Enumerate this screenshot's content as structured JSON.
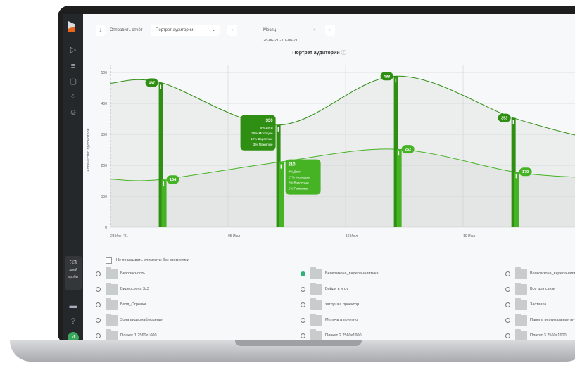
{
  "toolbar": {
    "send_report": "Отправить отчёт",
    "report_select": "Портрет аудитории",
    "period": "Месяц",
    "date_range": "28-06-21 - 01-08-21",
    "prev_icon": "chevron-left-icon",
    "next_icon": "chevron-right-icon"
  },
  "sidebar": {
    "trial_days": "33",
    "trial_label_1": "дней",
    "trial_label_2": "пробы",
    "avatar": "И",
    "icons": [
      "play-icon",
      "list-icon",
      "file-icon",
      "loader-icon",
      "user-icon",
      "monitor-icon",
      "help-icon"
    ]
  },
  "chart_data": {
    "type": "line",
    "title": "Портрет аудитории",
    "ylabel": "Количество просмотров",
    "xlabel": "",
    "ylim": [
      0,
      500
    ],
    "yticks": [
      0,
      100,
      200,
      300,
      400,
      500
    ],
    "xticks": [
      "28 Июн '21",
      "05 Июл",
      "12 Июл",
      "19 Июл"
    ],
    "grid": true,
    "colors": {
      "upper": "#2f8f12",
      "lower": "#45b324"
    },
    "series": [
      {
        "x": [
          "2021-06-28",
          "2021-07-01",
          "2021-07-08",
          "2021-07-15",
          "2021-07-22",
          "2021-07-26"
        ],
        "values": [
          465,
          467,
          330,
          488,
          353,
          290
        ],
        "labels": [
          null,
          "467",
          "330",
          "488",
          "353",
          null
        ]
      },
      {
        "x": [
          "2021-06-28",
          "2021-07-01",
          "2021-07-08",
          "2021-07-15",
          "2021-07-22",
          "2021-07-26"
        ],
        "values": [
          155,
          154,
          210,
          252,
          179,
          160
        ],
        "labels": [
          null,
          "154",
          "210",
          "252",
          "179",
          null
        ]
      }
    ],
    "tooltips": [
      {
        "value": "330",
        "lines": [
          "8% Дети",
          "36% Молодые",
          "12% Взрослые",
          "3% Пожилые"
        ]
      },
      {
        "value": "210",
        "lines": [
          "9% Дети",
          "27% Молодые",
          "2% Взрослые",
          "2% Пожилые"
        ]
      }
    ]
  },
  "filter": {
    "hide_empty": "Не показывать элементы без статистики"
  },
  "items": [
    [
      "Безопасность",
      "Велкомзона_видеоаналитика",
      "Велкомзона_видеоаналитика"
    ],
    [
      "Видеостена 3х3",
      "Войди в игру",
      "Все для связи"
    ],
    [
      "Вход_Стрелки",
      "заглушка проектор",
      "Заставка"
    ],
    [
      "Зона видеонаблюдения",
      "Мелочь а приятно",
      "Панель вертикальная внутр"
    ],
    [
      "Плакат 1 2560х1600",
      "Плакат 2 2560х1600",
      "Плакат 3 2560х1600"
    ]
  ],
  "selected_item": "Велкомзона_видеоаналитика"
}
